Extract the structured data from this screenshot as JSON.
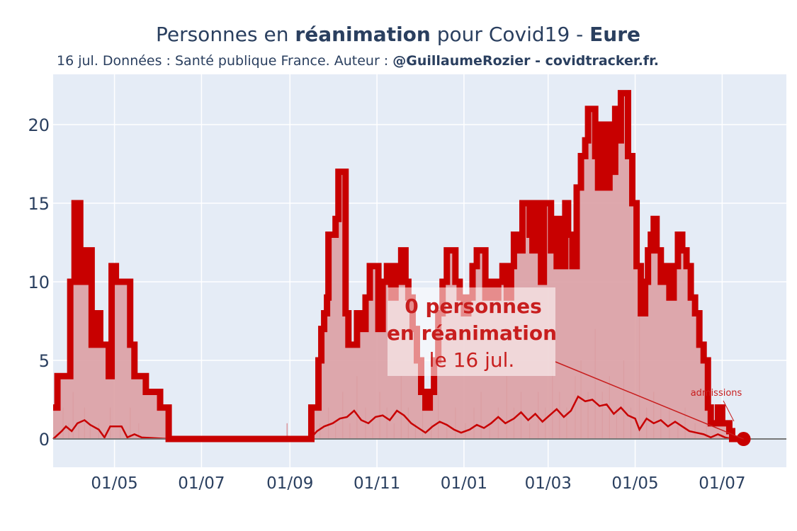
{
  "header": {
    "title_pre": "Personnes en ",
    "title_bold1": "réanimation",
    "title_mid": " pour Covid19 - ",
    "title_bold2": "Eure",
    "subtitle_pre": "16 jul. Données : Santé publique France. Auteur : ",
    "subtitle_bold": "@GuillaumeRozier - covidtracker.fr."
  },
  "annotation": {
    "line1": "0 personnes",
    "line2": "en réanimation",
    "line3": "le 16 jul.",
    "admissions_label": "admissions"
  },
  "colors": {
    "plot_bg": "#e5ecf6",
    "grid": "#ffffff",
    "reanimation_line": "#c80000",
    "reanimation_fill": "#dba0a4",
    "admissions_line": "#c80000",
    "annotation_text": "#c81e1e",
    "zero_line": "#777777",
    "text": "#2a3f5f"
  },
  "chart_data": {
    "type": "line",
    "x_start": "2020-03-19",
    "x_end": "2021-08-15",
    "ylim": [
      -1.8,
      23.2
    ],
    "yticks": [
      0,
      5,
      10,
      15,
      20
    ],
    "xticks": [
      {
        "date": "2020-05-01",
        "label": "01/05"
      },
      {
        "date": "2020-07-01",
        "label": "01/07"
      },
      {
        "date": "2020-09-01",
        "label": "01/09"
      },
      {
        "date": "2020-11-01",
        "label": "01/11"
      },
      {
        "date": "2021-01-01",
        "label": "01/01"
      },
      {
        "date": "2021-03-01",
        "label": "01/03"
      },
      {
        "date": "2021-05-01",
        "label": "01/05"
      },
      {
        "date": "2021-07-01",
        "label": "01/07"
      }
    ],
    "series": [
      {
        "name": "réanimation",
        "style": "thick line with filled area",
        "points": [
          [
            "2020-03-19",
            2
          ],
          [
            "2020-03-22",
            4
          ],
          [
            "2020-03-26",
            4
          ],
          [
            "2020-03-31",
            10
          ],
          [
            "2020-04-03",
            15
          ],
          [
            "2020-04-07",
            10
          ],
          [
            "2020-04-09",
            12
          ],
          [
            "2020-04-11",
            10
          ],
          [
            "2020-04-13",
            12
          ],
          [
            "2020-04-15",
            6
          ],
          [
            "2020-04-18",
            8
          ],
          [
            "2020-04-21",
            6
          ],
          [
            "2020-04-24",
            6
          ],
          [
            "2020-04-27",
            4
          ],
          [
            "2020-04-29",
            11
          ],
          [
            "2020-05-02",
            10
          ],
          [
            "2020-05-09",
            10
          ],
          [
            "2020-05-12",
            6
          ],
          [
            "2020-05-15",
            4
          ],
          [
            "2020-05-20",
            4
          ],
          [
            "2020-05-23",
            3
          ],
          [
            "2020-05-30",
            3
          ],
          [
            "2020-06-02",
            2
          ],
          [
            "2020-06-07",
            2
          ],
          [
            "2020-06-08",
            0
          ],
          [
            "2020-09-15",
            0
          ],
          [
            "2020-09-16",
            2
          ],
          [
            "2020-09-18",
            2
          ],
          [
            "2020-09-21",
            5
          ],
          [
            "2020-09-23",
            7
          ],
          [
            "2020-09-25",
            8
          ],
          [
            "2020-09-27",
            9
          ],
          [
            "2020-09-28",
            13
          ],
          [
            "2020-10-01",
            13
          ],
          [
            "2020-10-03",
            14
          ],
          [
            "2020-10-05",
            17
          ],
          [
            "2020-10-07",
            17
          ],
          [
            "2020-10-10",
            8
          ],
          [
            "2020-10-12",
            6
          ],
          [
            "2020-10-16",
            6
          ],
          [
            "2020-10-18",
            8
          ],
          [
            "2020-10-20",
            7
          ],
          [
            "2020-10-24",
            9
          ],
          [
            "2020-10-27",
            11
          ],
          [
            "2020-10-30",
            11
          ],
          [
            "2020-11-02",
            7
          ],
          [
            "2020-11-05",
            10
          ],
          [
            "2020-11-08",
            11
          ],
          [
            "2020-11-11",
            9
          ],
          [
            "2020-11-14",
            11
          ],
          [
            "2020-11-16",
            10
          ],
          [
            "2020-11-18",
            12
          ],
          [
            "2020-11-21",
            10
          ],
          [
            "2020-11-23",
            9
          ],
          [
            "2020-11-26",
            7
          ],
          [
            "2020-11-29",
            5
          ],
          [
            "2020-12-02",
            3
          ],
          [
            "2020-12-05",
            2
          ],
          [
            "2020-12-08",
            3
          ],
          [
            "2020-12-11",
            5
          ],
          [
            "2020-12-14",
            8
          ],
          [
            "2020-12-17",
            10
          ],
          [
            "2020-12-20",
            12
          ],
          [
            "2020-12-23",
            12
          ],
          [
            "2020-12-26",
            10
          ],
          [
            "2020-12-29",
            9
          ],
          [
            "2021-01-01",
            8
          ],
          [
            "2021-01-04",
            9
          ],
          [
            "2021-01-07",
            11
          ],
          [
            "2021-01-10",
            12
          ],
          [
            "2021-01-13",
            12
          ],
          [
            "2021-01-16",
            9
          ],
          [
            "2021-01-19",
            10
          ],
          [
            "2021-01-22",
            9
          ],
          [
            "2021-01-25",
            10
          ],
          [
            "2021-01-28",
            11
          ],
          [
            "2021-01-31",
            9
          ],
          [
            "2021-02-03",
            11
          ],
          [
            "2021-02-05",
            13
          ],
          [
            "2021-02-08",
            12
          ],
          [
            "2021-02-11",
            15
          ],
          [
            "2021-02-14",
            15
          ],
          [
            "2021-02-16",
            13
          ],
          [
            "2021-02-18",
            12
          ],
          [
            "2021-02-20",
            15
          ],
          [
            "2021-02-22",
            14
          ],
          [
            "2021-02-24",
            10
          ],
          [
            "2021-02-26",
            15
          ],
          [
            "2021-03-01",
            15
          ],
          [
            "2021-03-03",
            12
          ],
          [
            "2021-03-05",
            14
          ],
          [
            "2021-03-07",
            11
          ],
          [
            "2021-03-09",
            14
          ],
          [
            "2021-03-11",
            11
          ],
          [
            "2021-03-13",
            15
          ],
          [
            "2021-03-15",
            13
          ],
          [
            "2021-03-18",
            11
          ],
          [
            "2021-03-21",
            16
          ],
          [
            "2021-03-24",
            18
          ],
          [
            "2021-03-27",
            19
          ],
          [
            "2021-03-29",
            21
          ],
          [
            "2021-04-01",
            21
          ],
          [
            "2021-04-03",
            18
          ],
          [
            "2021-04-05",
            16
          ],
          [
            "2021-04-07",
            20
          ],
          [
            "2021-04-09",
            17
          ],
          [
            "2021-04-11",
            16
          ],
          [
            "2021-04-13",
            20
          ],
          [
            "2021-04-15",
            17
          ],
          [
            "2021-04-17",
            21
          ],
          [
            "2021-04-19",
            19
          ],
          [
            "2021-04-21",
            22
          ],
          [
            "2021-04-24",
            22
          ],
          [
            "2021-04-26",
            18
          ],
          [
            "2021-04-29",
            15
          ],
          [
            "2021-05-02",
            11
          ],
          [
            "2021-05-05",
            8
          ],
          [
            "2021-05-08",
            10
          ],
          [
            "2021-05-10",
            12
          ],
          [
            "2021-05-12",
            13
          ],
          [
            "2021-05-14",
            14
          ],
          [
            "2021-05-16",
            12
          ],
          [
            "2021-05-19",
            10
          ],
          [
            "2021-05-22",
            11
          ],
          [
            "2021-05-25",
            9
          ],
          [
            "2021-05-28",
            11
          ],
          [
            "2021-05-31",
            13
          ],
          [
            "2021-06-03",
            12
          ],
          [
            "2021-06-06",
            11
          ],
          [
            "2021-06-09",
            9
          ],
          [
            "2021-06-12",
            8
          ],
          [
            "2021-06-15",
            6
          ],
          [
            "2021-06-18",
            5
          ],
          [
            "2021-06-21",
            2
          ],
          [
            "2021-06-23",
            1
          ],
          [
            "2021-06-26",
            1
          ],
          [
            "2021-06-28",
            2
          ],
          [
            "2021-07-01",
            1
          ],
          [
            "2021-07-04",
            1
          ],
          [
            "2021-07-06",
            0.5
          ],
          [
            "2021-07-08",
            0
          ],
          [
            "2021-07-16",
            0
          ]
        ]
      },
      {
        "name": "admissions",
        "style": "thin line plus daily bars",
        "points": [
          [
            "2020-03-19",
            0
          ],
          [
            "2020-03-25",
            0.5
          ],
          [
            "2020-03-28",
            0.8
          ],
          [
            "2020-04-01",
            0.5
          ],
          [
            "2020-04-05",
            1.0
          ],
          [
            "2020-04-10",
            1.2
          ],
          [
            "2020-04-14",
            0.9
          ],
          [
            "2020-04-20",
            0.6
          ],
          [
            "2020-04-24",
            0.1
          ],
          [
            "2020-04-28",
            0.8
          ],
          [
            "2020-05-06",
            0.8
          ],
          [
            "2020-05-10",
            0.1
          ],
          [
            "2020-05-15",
            0.3
          ],
          [
            "2020-05-20",
            0.1
          ],
          [
            "2020-06-08",
            0
          ],
          [
            "2020-09-15",
            0
          ],
          [
            "2020-09-20",
            0.5
          ],
          [
            "2020-09-25",
            0.8
          ],
          [
            "2020-10-01",
            1.0
          ],
          [
            "2020-10-06",
            1.3
          ],
          [
            "2020-10-11",
            1.4
          ],
          [
            "2020-10-16",
            1.8
          ],
          [
            "2020-10-21",
            1.2
          ],
          [
            "2020-10-26",
            1.0
          ],
          [
            "2020-10-31",
            1.4
          ],
          [
            "2020-11-05",
            1.5
          ],
          [
            "2020-11-10",
            1.2
          ],
          [
            "2020-11-15",
            1.8
          ],
          [
            "2020-11-20",
            1.5
          ],
          [
            "2020-11-25",
            1.0
          ],
          [
            "2020-11-30",
            0.7
          ],
          [
            "2020-12-05",
            0.4
          ],
          [
            "2020-12-10",
            0.8
          ],
          [
            "2020-12-15",
            1.1
          ],
          [
            "2020-12-20",
            0.9
          ],
          [
            "2020-12-25",
            0.6
          ],
          [
            "2020-12-30",
            0.4
          ],
          [
            "2021-01-05",
            0.6
          ],
          [
            "2021-01-10",
            0.9
          ],
          [
            "2021-01-15",
            0.7
          ],
          [
            "2021-01-20",
            1.0
          ],
          [
            "2021-01-25",
            1.4
          ],
          [
            "2021-01-30",
            1.0
          ],
          [
            "2021-02-05",
            1.3
          ],
          [
            "2021-02-10",
            1.7
          ],
          [
            "2021-02-15",
            1.2
          ],
          [
            "2021-02-20",
            1.6
          ],
          [
            "2021-02-25",
            1.1
          ],
          [
            "2021-03-02",
            1.5
          ],
          [
            "2021-03-07",
            1.9
          ],
          [
            "2021-03-12",
            1.4
          ],
          [
            "2021-03-17",
            1.8
          ],
          [
            "2021-03-22",
            2.7
          ],
          [
            "2021-03-27",
            2.4
          ],
          [
            "2021-04-01",
            2.5
          ],
          [
            "2021-04-06",
            2.1
          ],
          [
            "2021-04-11",
            2.2
          ],
          [
            "2021-04-16",
            1.6
          ],
          [
            "2021-04-21",
            2.0
          ],
          [
            "2021-04-26",
            1.5
          ],
          [
            "2021-05-01",
            1.3
          ],
          [
            "2021-05-04",
            0.6
          ],
          [
            "2021-05-09",
            1.3
          ],
          [
            "2021-05-14",
            1.0
          ],
          [
            "2021-05-19",
            1.2
          ],
          [
            "2021-05-24",
            0.8
          ],
          [
            "2021-05-29",
            1.1
          ],
          [
            "2021-06-03",
            0.8
          ],
          [
            "2021-06-08",
            0.5
          ],
          [
            "2021-06-13",
            0.4
          ],
          [
            "2021-06-18",
            0.3
          ],
          [
            "2021-06-23",
            0.1
          ],
          [
            "2021-06-28",
            0.3
          ],
          [
            "2021-07-03",
            0.1
          ],
          [
            "2021-07-08",
            0
          ],
          [
            "2021-07-16",
            0
          ]
        ]
      }
    ],
    "admission_bars": [
      [
        "2020-03-26",
        2
      ],
      [
        "2020-03-30",
        1
      ],
      [
        "2020-04-02",
        3
      ],
      [
        "2020-04-06",
        1
      ],
      [
        "2020-04-10",
        2
      ],
      [
        "2020-04-14",
        1
      ],
      [
        "2020-04-20",
        1
      ],
      [
        "2020-04-28",
        2
      ],
      [
        "2020-05-05",
        1
      ],
      [
        "2020-05-12",
        2
      ],
      [
        "2020-05-18",
        1
      ],
      [
        "2020-08-30",
        1
      ],
      [
        "2020-09-22",
        1
      ],
      [
        "2020-09-28",
        2
      ],
      [
        "2020-10-03",
        1
      ],
      [
        "2020-10-08",
        3
      ],
      [
        "2020-10-13",
        1
      ],
      [
        "2020-10-18",
        4
      ],
      [
        "2020-10-24",
        2
      ],
      [
        "2020-10-29",
        1
      ],
      [
        "2020-11-03",
        3
      ],
      [
        "2020-11-08",
        2
      ],
      [
        "2020-11-13",
        1
      ],
      [
        "2020-11-18",
        4
      ],
      [
        "2020-11-23",
        2
      ],
      [
        "2020-11-28",
        1
      ],
      [
        "2020-12-03",
        2
      ],
      [
        "2020-12-09",
        1
      ],
      [
        "2020-12-14",
        3
      ],
      [
        "2020-12-20",
        1
      ],
      [
        "2020-12-26",
        2
      ],
      [
        "2021-01-02",
        1
      ],
      [
        "2021-01-08",
        2
      ],
      [
        "2021-01-13",
        3
      ],
      [
        "2021-01-19",
        1
      ],
      [
        "2021-01-25",
        2
      ],
      [
        "2021-01-31",
        4
      ],
      [
        "2021-02-05",
        2
      ],
      [
        "2021-02-10",
        3
      ],
      [
        "2021-02-16",
        1
      ],
      [
        "2021-02-22",
        3
      ],
      [
        "2021-02-27",
        2
      ],
      [
        "2021-03-04",
        5
      ],
      [
        "2021-03-09",
        3
      ],
      [
        "2021-03-14",
        2
      ],
      [
        "2021-03-20",
        4
      ],
      [
        "2021-03-24",
        5
      ],
      [
        "2021-03-29",
        3
      ],
      [
        "2021-04-03",
        7
      ],
      [
        "2021-04-08",
        3
      ],
      [
        "2021-04-13",
        4
      ],
      [
        "2021-04-18",
        2
      ],
      [
        "2021-04-23",
        5
      ],
      [
        "2021-04-28",
        2
      ],
      [
        "2021-05-04",
        8
      ],
      [
        "2021-05-09",
        2
      ],
      [
        "2021-05-14",
        3
      ],
      [
        "2021-05-19",
        2
      ],
      [
        "2021-05-25",
        2
      ],
      [
        "2021-05-31",
        1
      ],
      [
        "2021-06-05",
        2
      ],
      [
        "2021-06-12",
        1
      ],
      [
        "2021-06-20",
        1
      ]
    ],
    "end_marker": {
      "date": "2021-07-16",
      "value": 0
    }
  }
}
